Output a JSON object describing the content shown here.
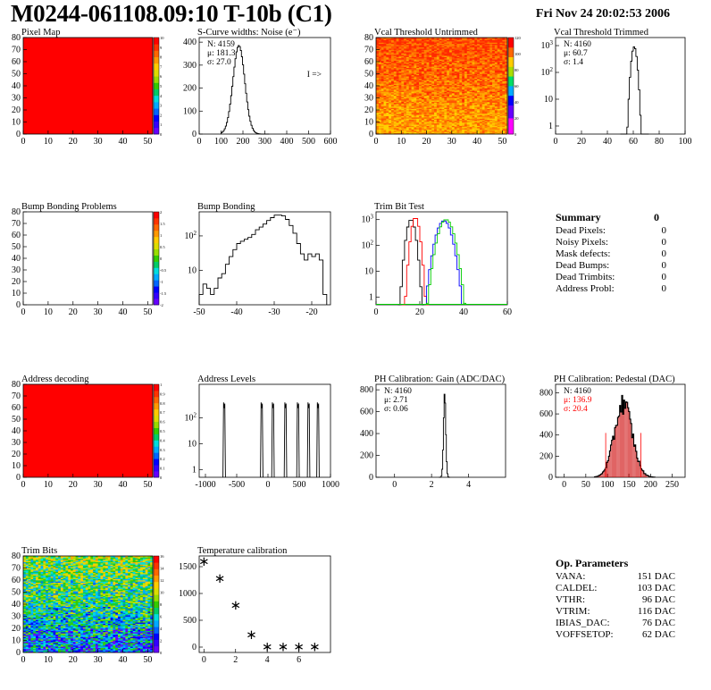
{
  "header": {
    "title": "M0244-061108.09:10 T-10b (C1)",
    "date": "Fri Nov 24 20:02:53 2006"
  },
  "colors": {
    "hist_line": "#000000",
    "red_series": "#ff0000",
    "green_series": "#00cc00",
    "blue_series": "#0000ff",
    "pedestal_fill": "#cc0000",
    "palette": [
      "#6600ff",
      "#3300ff",
      "#0000ff",
      "#0066ff",
      "#00aaff",
      "#00dddd",
      "#00cc66",
      "#33cc00",
      "#99dd00",
      "#dddd00",
      "#ffcc00",
      "#ff9900",
      "#ff6600",
      "#ff3300",
      "#ff0000"
    ]
  },
  "summary": {
    "title": "Summary",
    "total": "0",
    "rows": [
      {
        "label": "Dead Pixels:",
        "value": "0"
      },
      {
        "label": "Noisy Pixels:",
        "value": "0"
      },
      {
        "label": "Mask defects:",
        "value": "0"
      },
      {
        "label": "Dead Bumps:",
        "value": "0"
      },
      {
        "label": "Dead Trimbits:",
        "value": "0"
      },
      {
        "label": "Address Probl:",
        "value": "0"
      }
    ]
  },
  "op_parameters": {
    "title": "Op. Parameters",
    "rows": [
      {
        "label": "VANA:",
        "value": "151 DAC"
      },
      {
        "label": "CALDEL:",
        "value": "103 DAC"
      },
      {
        "label": "VTHR:",
        "value": "96 DAC"
      },
      {
        "label": "VTRIM:",
        "value": "116 DAC"
      },
      {
        "label": "IBIAS_DAC:",
        "value": "76 DAC"
      },
      {
        "label": "VOFFSETOP:",
        "value": "62 DAC"
      }
    ]
  },
  "chart_data": [
    {
      "id": "pixel-map",
      "type": "heatmap",
      "title": "Pixel Map",
      "xlim": [
        0,
        52
      ],
      "ylim": [
        0,
        80
      ],
      "xticks": [
        0,
        10,
        20,
        30,
        40,
        50
      ],
      "yticks": [
        0,
        10,
        20,
        30,
        40,
        50,
        60,
        70,
        80
      ],
      "pattern": "uniform",
      "value": 10,
      "zticks": [
        "0",
        "1",
        "2",
        "3",
        "4",
        "5",
        "6",
        "7",
        "8",
        "9",
        "10"
      ]
    },
    {
      "id": "scurve-noise",
      "type": "line",
      "title": "S-Curve widths: Noise (e⁻)",
      "xlim": [
        0,
        600
      ],
      "ylim": [
        0,
        420
      ],
      "xticks": [
        0,
        100,
        200,
        300,
        400,
        500,
        600
      ],
      "yticks": [
        0,
        100,
        200,
        300,
        400
      ],
      "stats": [
        "N: 4159",
        "μ: 181.3",
        "σ: 27.0"
      ],
      "annotation": "I =>",
      "series": [
        {
          "shape": "gauss",
          "mean": 181.3,
          "sigma": 27.0,
          "peak": 385,
          "xmin": 100,
          "xmax": 320,
          "bins": 45
        }
      ]
    },
    {
      "id": "vcal-untrimmed",
      "type": "heatmap",
      "title": "Vcal Threshold Untrimmed",
      "xlim": [
        0,
        52
      ],
      "ylim": [
        0,
        80
      ],
      "xticks": [
        0,
        10,
        20,
        30,
        40,
        50
      ],
      "yticks": [
        0,
        10,
        20,
        30,
        40,
        50,
        60,
        70,
        80
      ],
      "pattern": "hot",
      "zmax": 120,
      "zticks": [
        "0",
        "20",
        "40",
        "60",
        "80",
        "100",
        "120"
      ]
    },
    {
      "id": "vcal-trimmed",
      "type": "line",
      "title": "Vcal Threshold Trimmed",
      "log": true,
      "xlim": [
        0,
        100
      ],
      "ylim": [
        0.5,
        2000
      ],
      "xticks": [
        0,
        20,
        40,
        60,
        80,
        100
      ],
      "yticks": [
        1,
        10,
        100,
        1000
      ],
      "stats": [
        "N: 4160",
        "μ: 60.7",
        "σ: 1.4"
      ],
      "series": [
        {
          "shape": "gauss",
          "mean": 60.7,
          "sigma": 1.4,
          "peak": 900,
          "xmin": 50,
          "xmax": 72,
          "bins": 22
        }
      ]
    },
    {
      "id": "bump-bonding-problems",
      "type": "heatmap",
      "title": "Bump Bonding Problems",
      "xlim": [
        0,
        52
      ],
      "ylim": [
        0,
        80
      ],
      "xticks": [
        0,
        10,
        20,
        30,
        40,
        50
      ],
      "yticks": [
        0,
        10,
        20,
        30,
        40,
        50,
        60,
        70,
        80
      ],
      "pattern": "empty",
      "zticks": [
        "-2",
        "-1.5",
        "-1",
        "-0.5",
        "0",
        "0.5",
        "1",
        "1.5",
        "2"
      ]
    },
    {
      "id": "bump-bonding",
      "type": "line",
      "title": "Bump Bonding",
      "log": true,
      "xlim": [
        -50,
        -15
      ],
      "ylim": [
        1,
        500
      ],
      "xticks": [
        -50,
        -40,
        -30,
        -20
      ],
      "yticks": [
        10,
        100
      ],
      "series": [
        {
          "shape": "points",
          "step": true,
          "points": [
            [
              -50,
              2
            ],
            [
              -49,
              4
            ],
            [
              -48,
              3
            ],
            [
              -47,
              2
            ],
            [
              -46,
              3
            ],
            [
              -45,
              6
            ],
            [
              -44,
              8
            ],
            [
              -43,
              15
            ],
            [
              -42,
              25
            ],
            [
              -41,
              40
            ],
            [
              -40,
              60
            ],
            [
              -39,
              70
            ],
            [
              -38,
              80
            ],
            [
              -37,
              90
            ],
            [
              -36,
              110
            ],
            [
              -35,
              150
            ],
            [
              -34,
              180
            ],
            [
              -33,
              220
            ],
            [
              -32,
              280
            ],
            [
              -31,
              340
            ],
            [
              -30,
              400
            ],
            [
              -29,
              400
            ],
            [
              -28,
              380
            ],
            [
              -27,
              300
            ],
            [
              -26,
              200
            ],
            [
              -25,
              120
            ],
            [
              -24,
              60
            ],
            [
              -23,
              30
            ],
            [
              -22,
              20
            ],
            [
              -21,
              30
            ],
            [
              -20,
              25
            ],
            [
              -19,
              30
            ],
            [
              -18,
              20
            ],
            [
              -17,
              2
            ]
          ]
        }
      ]
    },
    {
      "id": "trim-bit-test",
      "type": "line",
      "title": "Trim Bit Test",
      "log": true,
      "xlim": [
        0,
        60
      ],
      "ylim": [
        0.5,
        2000
      ],
      "xticks": [
        0,
        20,
        40,
        60
      ],
      "yticks": [
        1,
        10,
        100,
        1000
      ],
      "series": [
        {
          "color": "#000000",
          "shape": "gauss",
          "mean": 16,
          "sigma": 1.3,
          "peak": 1000,
          "xmin": 10,
          "xmax": 22,
          "bins": 12
        },
        {
          "color": "#ff0000",
          "shape": "gauss",
          "mean": 18,
          "sigma": 1.2,
          "peak": 1200,
          "xmin": 12,
          "xmax": 24,
          "bins": 12
        },
        {
          "color": "#0000ff",
          "shape": "gauss",
          "mean": 31,
          "sigma": 2.2,
          "peak": 900,
          "xmin": 22,
          "xmax": 40,
          "bins": 18
        },
        {
          "color": "#00cc00",
          "shape": "gauss",
          "mean": 32,
          "sigma": 2.2,
          "peak": 1000,
          "xmin": 23,
          "xmax": 41,
          "bins": 18
        }
      ]
    },
    {
      "id": "address-decoding",
      "type": "heatmap",
      "title": "Address decoding",
      "xlim": [
        0,
        52
      ],
      "ylim": [
        0,
        80
      ],
      "xticks": [
        0,
        10,
        20,
        30,
        40,
        50
      ],
      "yticks": [
        0,
        10,
        20,
        30,
        40,
        50,
        60,
        70,
        80
      ],
      "pattern": "uniform",
      "value": 1,
      "zticks": [
        "0",
        "0.1",
        "0.2",
        "0.3",
        "0.4",
        "0.5",
        "0.6",
        "0.7",
        "0.8",
        "0.9",
        "1"
      ]
    },
    {
      "id": "address-levels",
      "type": "line",
      "title": "Address Levels",
      "log": true,
      "xlim": [
        -1100,
        1000
      ],
      "ylim": [
        0.5,
        2000
      ],
      "xticks": [
        -1000,
        -500,
        0,
        500,
        1000
      ],
      "yticks": [
        1,
        10,
        100
      ],
      "series": [
        {
          "shape": "spikes",
          "positions": [
            -700,
            -100,
            80,
            280,
            480,
            650,
            800
          ],
          "peak": 400,
          "width": 40
        }
      ]
    },
    {
      "id": "ph-gain",
      "type": "line",
      "title": "PH Calibration: Gain (ADC/DAC)",
      "xlim": [
        -1,
        6
      ],
      "ylim": [
        0,
        850
      ],
      "xticks": [
        0,
        2,
        4
      ],
      "yticks": [
        0,
        200,
        400,
        600,
        800
      ],
      "stats": [
        "N: 4160",
        "μ: 2.71",
        "σ: 0.06"
      ],
      "series": [
        {
          "shape": "gauss",
          "mean": 2.71,
          "sigma": 0.06,
          "peak": 770,
          "xmin": 2.4,
          "xmax": 3.0,
          "bins": 15
        }
      ]
    },
    {
      "id": "ph-pedestal",
      "type": "line",
      "title": "PH Calibration: Pedestal (DAC)",
      "xlim": [
        -20,
        280
      ],
      "ylim": [
        0,
        880
      ],
      "xticks": [
        0,
        50,
        100,
        150,
        200,
        250
      ],
      "yticks": [
        0,
        200,
        400,
        600,
        800
      ],
      "stats": [
        "N: 4160",
        "μ: 136.9",
        "σ: 20.4"
      ],
      "series": [
        {
          "shape": "gauss",
          "mean": 136.9,
          "sigma": 20.4,
          "peak": 700,
          "xmin": 70,
          "xmax": 210,
          "bins": 60,
          "fill": true,
          "noise": true
        }
      ],
      "markers": [
        96.1,
        177.7
      ]
    },
    {
      "id": "trim-bits",
      "type": "heatmap",
      "title": "Trim Bits",
      "xlim": [
        0,
        52
      ],
      "ylim": [
        0,
        80
      ],
      "xticks": [
        0,
        10,
        20,
        30,
        40,
        50
      ],
      "yticks": [
        0,
        10,
        20,
        30,
        40,
        50,
        60,
        70,
        80
      ],
      "pattern": "trim",
      "zmax": 16,
      "zticks": [
        "0",
        "2",
        "4",
        "6",
        "8",
        "10",
        "12",
        "14",
        "16"
      ]
    },
    {
      "id": "temperature-calibration",
      "type": "scatter",
      "title": "Temperature calibration",
      "xlim": [
        -0.3,
        8
      ],
      "ylim": [
        -100,
        1700
      ],
      "xticks": [
        0,
        2,
        4,
        6
      ],
      "yticks": [
        0,
        500,
        1000,
        1500
      ],
      "points": [
        [
          0,
          1580
        ],
        [
          1,
          1270
        ],
        [
          2,
          770
        ],
        [
          3,
          220
        ],
        [
          4,
          -10
        ],
        [
          5,
          -10
        ],
        [
          6,
          -10
        ],
        [
          7,
          -10
        ]
      ]
    }
  ]
}
